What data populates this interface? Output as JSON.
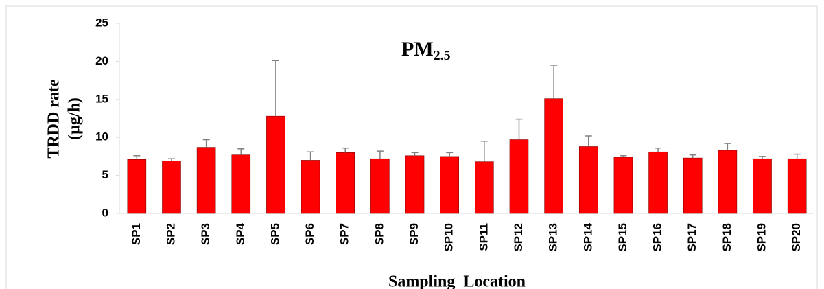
{
  "chart_data": {
    "type": "bar",
    "title": "PM",
    "title_subscript": "2.5",
    "ylabel": [
      "TRDD rate",
      "(µg/h)"
    ],
    "xlabel": "Sampling  Location",
    "categories": [
      "SP1",
      "SP2",
      "SP3",
      "SP4",
      "SP5",
      "SP6",
      "SP7",
      "SP8",
      "SP9",
      "SP10",
      "SP11",
      "SP12",
      "SP13",
      "SP14",
      "SP15",
      "SP16",
      "SP17",
      "SP18",
      "SP19",
      "SP20"
    ],
    "values": [
      7.1,
      6.9,
      8.7,
      7.7,
      12.8,
      7.0,
      8.0,
      7.2,
      7.6,
      7.5,
      6.8,
      9.7,
      15.1,
      8.8,
      7.4,
      8.1,
      7.3,
      8.3,
      7.2,
      7.2
    ],
    "errors": [
      0.5,
      0.3,
      1.0,
      0.8,
      7.3,
      1.1,
      0.6,
      1.0,
      0.4,
      0.5,
      2.7,
      2.7,
      4.4,
      1.4,
      0.2,
      0.5,
      0.4,
      0.9,
      0.3,
      0.6
    ],
    "color": "#ff0000",
    "error_color": "#808080",
    "ylim": [
      0,
      25
    ],
    "yticks": [
      0,
      5,
      10,
      15,
      20,
      25
    ]
  }
}
